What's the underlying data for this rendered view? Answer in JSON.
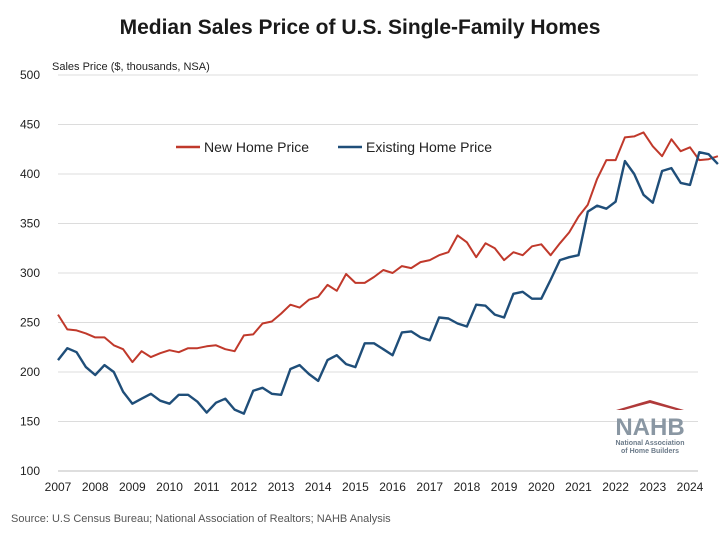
{
  "title": "Median Sales Price of U.S. Single-Family Homes",
  "source": "Source: U.S Census Bureau; National Association of Realtors; NAHB Analysis",
  "logo": {
    "word": "NAHB",
    "line1": "National Association",
    "line2": "of Home Builders",
    "icon": "house-roof-icon"
  },
  "chart_data": {
    "type": "line",
    "title": "Median Sales Price of U.S. Single-Family Homes",
    "ylabel": "Sales Price ($, thousands, NSA)",
    "xlabel": "",
    "ylim": [
      100,
      500
    ],
    "yticks": [
      100,
      150,
      200,
      250,
      300,
      350,
      400,
      450,
      500
    ],
    "xticks": [
      "2007",
      "2008",
      "2009",
      "2010",
      "2011",
      "2012",
      "2013",
      "2014",
      "2015",
      "2016",
      "2017",
      "2018",
      "2019",
      "2020",
      "2021",
      "2022",
      "2023",
      "2024"
    ],
    "x_start": 2007,
    "points_per_year": 4,
    "grid": true,
    "legend": "top-center",
    "series": [
      {
        "name": "New Home Price",
        "color": "#c0392b",
        "values": [
          258,
          243,
          242,
          239,
          235,
          235,
          227,
          223,
          210,
          221,
          215,
          219,
          222,
          220,
          224,
          224,
          226,
          227,
          223,
          221,
          237,
          238,
          249,
          251,
          259,
          268,
          265,
          273,
          276,
          288,
          282,
          299,
          290,
          290,
          296,
          303,
          300,
          307,
          305,
          311,
          313,
          318,
          321,
          338,
          331,
          316,
          330,
          325,
          313,
          321,
          318,
          327,
          329,
          318,
          330,
          341,
          357,
          369,
          395,
          414,
          414,
          437,
          438,
          442,
          428,
          418,
          435,
          423,
          427,
          414,
          415,
          418
        ]
      },
      {
        "name": "Existing Home Price",
        "color": "#1f4e79",
        "values": [
          212,
          224,
          220,
          205,
          197,
          207,
          200,
          180,
          168,
          173,
          178,
          171,
          168,
          177,
          177,
          170,
          159,
          169,
          173,
          162,
          158,
          181,
          184,
          178,
          177,
          203,
          207,
          198,
          191,
          212,
          217,
          208,
          205,
          229,
          229,
          223,
          217,
          240,
          241,
          235,
          232,
          255,
          254,
          249,
          246,
          268,
          267,
          258,
          255,
          279,
          281,
          274,
          274,
          293,
          313,
          316,
          318,
          362,
          368,
          365,
          372,
          413,
          400,
          379,
          371,
          403,
          406,
          391,
          389,
          422,
          420,
          410
        ]
      }
    ]
  }
}
